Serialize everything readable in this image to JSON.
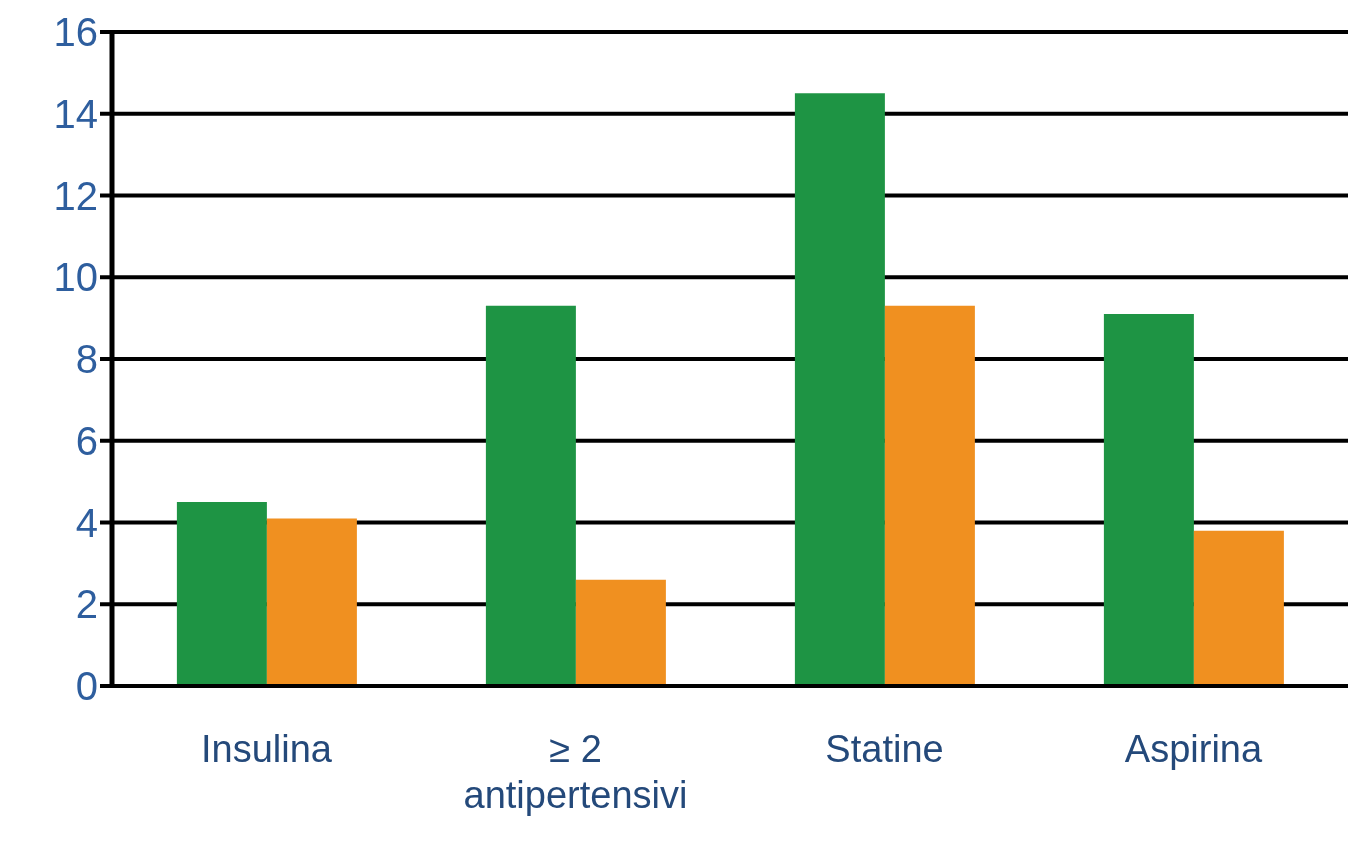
{
  "chart_data": {
    "type": "bar",
    "categories": [
      "Insulina",
      "≥ 2 antipertensivi",
      "Statine",
      "Aspirina"
    ],
    "series": [
      {
        "color": "#1e9444",
        "values": [
          4.5,
          9.3,
          14.5,
          9.1
        ]
      },
      {
        "color": "#f09020",
        "values": [
          4.1,
          2.6,
          9.3,
          3.8
        ]
      }
    ],
    "ylim": [
      0,
      16
    ],
    "yticks": [
      0,
      2,
      4,
      6,
      8,
      10,
      12,
      14,
      16
    ],
    "grid": "y",
    "legend": false
  }
}
